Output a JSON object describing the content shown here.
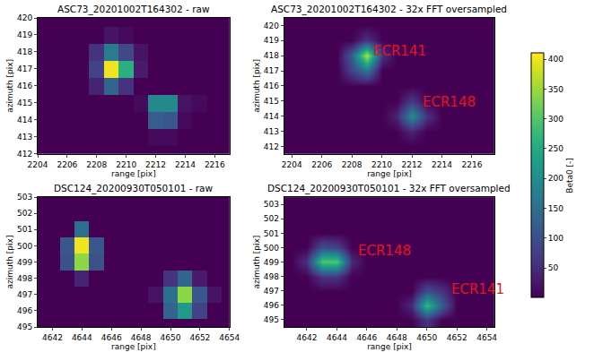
{
  "chart_data": [
    {
      "type": "heatmap",
      "title": "ASC73_20201002T164302 - raw",
      "x_label": "range [pix]",
      "y_label": "azimuth [pix]",
      "x": [
        2204,
        2205,
        2206,
        2207,
        2208,
        2209,
        2210,
        2211,
        2212,
        2213,
        2214,
        2215,
        2216,
        2217
      ],
      "y": [
        412,
        413,
        414,
        415,
        416,
        417,
        418,
        419,
        420
      ],
      "z": [
        [
          0,
          0,
          0,
          0,
          0,
          0,
          0,
          0,
          0,
          0,
          0,
          0,
          0,
          0
        ],
        [
          0,
          0,
          0,
          0,
          0,
          0,
          0,
          0,
          10,
          10,
          0,
          0,
          0,
          0
        ],
        [
          0,
          0,
          0,
          0,
          0,
          0,
          0,
          0,
          120,
          110,
          10,
          0,
          0,
          0
        ],
        [
          0,
          0,
          0,
          0,
          0,
          0,
          0,
          10,
          190,
          190,
          20,
          10,
          0,
          0
        ],
        [
          0,
          0,
          0,
          0,
          40,
          130,
          60,
          0,
          0,
          0,
          0,
          0,
          0,
          0
        ],
        [
          0,
          0,
          0,
          0,
          80,
          400,
          260,
          30,
          0,
          0,
          0,
          0,
          0,
          0
        ],
        [
          0,
          0,
          0,
          0,
          60,
          170,
          90,
          20,
          0,
          0,
          0,
          0,
          0,
          0
        ],
        [
          0,
          0,
          0,
          0,
          0,
          20,
          10,
          0,
          0,
          0,
          0,
          0,
          0,
          0
        ],
        [
          0,
          0,
          0,
          0,
          0,
          0,
          0,
          0,
          0,
          0,
          0,
          0,
          0,
          0
        ]
      ],
      "xlim": [
        2204,
        2217
      ],
      "ylim": [
        412,
        420
      ],
      "xticks": [
        2204,
        2206,
        2208,
        2210,
        2212,
        2214,
        2216
      ],
      "yticks": [
        412,
        413,
        414,
        415,
        416,
        417,
        418,
        419,
        420
      ]
    },
    {
      "type": "heatmap",
      "title": "ASC73_20201002T164302 - 32x FFT oversampled",
      "x_label": "range [pix]",
      "y_label": "azimuth [pix]",
      "x": [
        2204,
        2205,
        2206,
        2207,
        2208,
        2209,
        2210,
        2211,
        2212,
        2213,
        2214,
        2215,
        2216,
        2217
      ],
      "y": [
        412,
        413,
        414,
        415,
        416,
        417,
        418,
        419,
        420
      ],
      "z": [
        [
          0,
          0,
          0,
          0,
          0,
          0,
          0,
          0,
          0,
          0,
          0,
          0,
          0,
          0
        ],
        [
          0,
          0,
          0,
          0,
          0,
          0,
          0,
          0,
          40,
          0,
          0,
          0,
          0,
          0
        ],
        [
          0,
          0,
          0,
          0,
          0,
          0,
          0,
          40,
          200,
          60,
          0,
          0,
          0,
          0
        ],
        [
          0,
          0,
          0,
          0,
          0,
          0,
          0,
          0,
          70,
          0,
          0,
          0,
          0,
          0
        ],
        [
          0,
          0,
          0,
          0,
          0,
          0,
          0,
          0,
          0,
          0,
          0,
          0,
          0,
          0
        ],
        [
          0,
          0,
          0,
          0,
          80,
          160,
          0,
          0,
          0,
          0,
          0,
          0,
          0,
          0
        ],
        [
          0,
          0,
          0,
          0,
          120,
          370,
          60,
          0,
          0,
          0,
          0,
          0,
          0,
          0
        ],
        [
          0,
          0,
          0,
          0,
          0,
          60,
          0,
          0,
          0,
          0,
          0,
          0,
          0,
          0
        ],
        [
          0,
          0,
          0,
          0,
          0,
          0,
          0,
          0,
          0,
          0,
          0,
          0,
          0,
          0
        ]
      ],
      "xlim": [
        2203.5,
        2217.5
      ],
      "ylim": [
        411.5,
        420.5
      ],
      "xticks": [
        2204,
        2206,
        2208,
        2210,
        2212,
        2214,
        2216
      ],
      "yticks": [
        412,
        413,
        414,
        415,
        416,
        417,
        418,
        419,
        420
      ],
      "annotations": [
        {
          "text": "ECR141",
          "x": 2209.3,
          "y": 418.3
        },
        {
          "text": "ECR148",
          "x": 2212.6,
          "y": 414.9
        }
      ],
      "colorbar": {
        "range": [
          0,
          410
        ],
        "ticks": [
          50,
          100,
          150,
          200,
          250,
          300,
          350,
          400
        ],
        "label": "Beta0 [-]"
      }
    },
    {
      "type": "heatmap",
      "title": "DSC124_20200930T050101 - raw",
      "x_label": "range [pix]",
      "y_label": "azimuth [pix]",
      "x": [
        4641,
        4642,
        4643,
        4644,
        4645,
        4646,
        4647,
        4648,
        4649,
        4650,
        4651,
        4652,
        4653,
        4654
      ],
      "y": [
        495,
        496,
        497,
        498,
        499,
        500,
        501,
        502,
        503
      ],
      "z": [
        [
          0,
          0,
          0,
          0,
          0,
          0,
          0,
          0,
          0,
          0,
          0,
          0,
          0,
          0
        ],
        [
          0,
          0,
          0,
          0,
          0,
          0,
          0,
          0,
          0,
          130,
          220,
          80,
          0,
          0
        ],
        [
          0,
          0,
          0,
          0,
          0,
          0,
          0,
          0,
          20,
          150,
          340,
          110,
          20,
          0
        ],
        [
          0,
          0,
          0,
          40,
          0,
          0,
          0,
          0,
          0,
          60,
          130,
          30,
          0,
          0
        ],
        [
          0,
          0,
          100,
          340,
          100,
          0,
          0,
          0,
          0,
          0,
          0,
          0,
          0,
          0
        ],
        [
          0,
          0,
          110,
          400,
          110,
          0,
          0,
          0,
          0,
          0,
          0,
          0,
          0,
          0
        ],
        [
          0,
          0,
          0,
          150,
          0,
          0,
          0,
          0,
          0,
          0,
          0,
          0,
          0,
          0
        ],
        [
          0,
          0,
          0,
          0,
          0,
          0,
          0,
          0,
          0,
          0,
          0,
          0,
          0,
          0
        ],
        [
          0,
          0,
          0,
          0,
          0,
          0,
          0,
          0,
          0,
          0,
          0,
          0,
          0,
          0
        ]
      ],
      "xlim": [
        4641,
        4654
      ],
      "ylim": [
        495,
        503
      ],
      "xticks": [
        4642,
        4644,
        4646,
        4648,
        4650,
        4652,
        4654
      ],
      "yticks": [
        495,
        496,
        497,
        498,
        499,
        500,
        501,
        502,
        503
      ]
    },
    {
      "type": "heatmap",
      "title": "DSC124_20200930T050101 - 32x FFT oversampled",
      "x_label": "range [pix]",
      "y_label": "azimuth [pix]",
      "x": [
        4641,
        4642,
        4643,
        4644,
        4645,
        4646,
        4647,
        4648,
        4649,
        4650,
        4651,
        4652,
        4653,
        4654
      ],
      "y": [
        495,
        496,
        497,
        498,
        499,
        500,
        501,
        502,
        503
      ],
      "z": [
        [
          0,
          0,
          0,
          0,
          0,
          0,
          0,
          0,
          0,
          60,
          0,
          0,
          0,
          0
        ],
        [
          0,
          0,
          0,
          0,
          0,
          0,
          0,
          0,
          50,
          280,
          120,
          0,
          0,
          0
        ],
        [
          0,
          0,
          0,
          0,
          0,
          0,
          0,
          0,
          0,
          100,
          60,
          0,
          0,
          0
        ],
        [
          0,
          0,
          60,
          60,
          0,
          0,
          0,
          0,
          0,
          0,
          0,
          0,
          0,
          0
        ],
        [
          0,
          60,
          300,
          300,
          50,
          0,
          0,
          0,
          0,
          0,
          0,
          0,
          0,
          0
        ],
        [
          0,
          0,
          100,
          80,
          0,
          0,
          0,
          0,
          0,
          0,
          0,
          0,
          0,
          0
        ],
        [
          0,
          0,
          0,
          0,
          0,
          0,
          0,
          0,
          0,
          0,
          0,
          0,
          0,
          0
        ],
        [
          0,
          0,
          0,
          0,
          0,
          0,
          0,
          0,
          0,
          0,
          0,
          0,
          0,
          0
        ],
        [
          0,
          0,
          0,
          0,
          0,
          0,
          0,
          0,
          0,
          0,
          0,
          0,
          0,
          0
        ]
      ],
      "xlim": [
        4640.5,
        4654.5
      ],
      "ylim": [
        494.5,
        503.5
      ],
      "xticks": [
        4642,
        4644,
        4646,
        4648,
        4650,
        4652,
        4654
      ],
      "yticks": [
        495,
        496,
        497,
        498,
        499,
        500,
        501,
        502,
        503
      ],
      "annotations": [
        {
          "text": "ECR148",
          "x": 4645.3,
          "y": 499.8
        },
        {
          "text": "ECR141",
          "x": 4651.5,
          "y": 497.1
        }
      ]
    }
  ]
}
